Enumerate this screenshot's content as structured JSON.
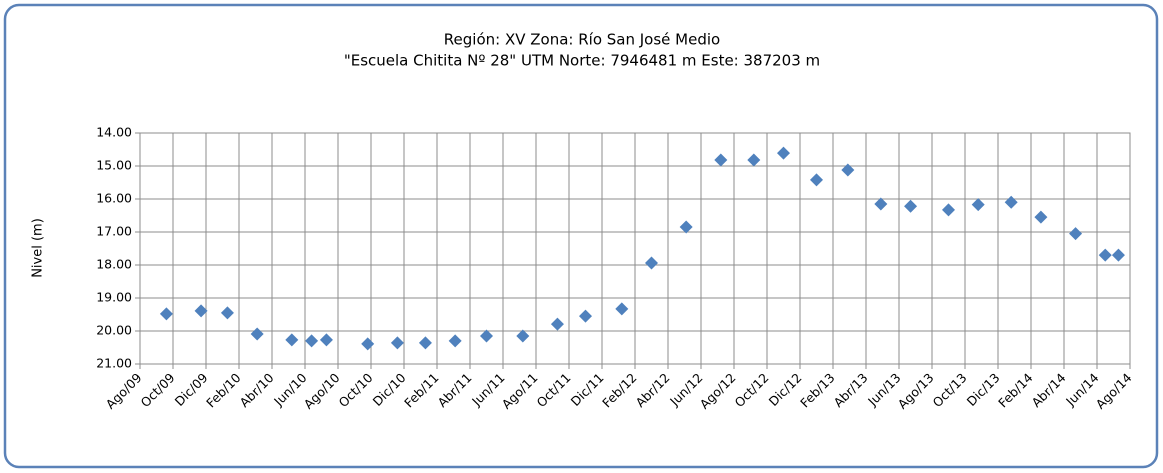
{
  "chart_data": {
    "type": "scatter",
    "title": "Región: XV Zona: Río San José Medio",
    "subtitle": "\"Escuela Chitita Nº 28\" UTM Norte: 7946481 m Este: 387203 m",
    "y_label": "Nivel (m)",
    "color": "#4f81bd",
    "grid": true,
    "y_reversed": true,
    "xlim": [
      0,
      60
    ],
    "xticks": [
      {
        "value": 0,
        "label": "Ago/09"
      },
      {
        "value": 2,
        "label": "Oct/09"
      },
      {
        "value": 4,
        "label": "Dic/09"
      },
      {
        "value": 6,
        "label": "Feb/10"
      },
      {
        "value": 8,
        "label": "Abr/10"
      },
      {
        "value": 10,
        "label": "Jun/10"
      },
      {
        "value": 12,
        "label": "Ago/10"
      },
      {
        "value": 14,
        "label": "Oct/10"
      },
      {
        "value": 16,
        "label": "Dic/10"
      },
      {
        "value": 18,
        "label": "Feb/11"
      },
      {
        "value": 20,
        "label": "Abr/11"
      },
      {
        "value": 22,
        "label": "Jun/11"
      },
      {
        "value": 24,
        "label": "Ago/11"
      },
      {
        "value": 26,
        "label": "Oct/11"
      },
      {
        "value": 28,
        "label": "Dic/11"
      },
      {
        "value": 30,
        "label": "Feb/12"
      },
      {
        "value": 32,
        "label": "Abr/12"
      },
      {
        "value": 34,
        "label": "Jun/12"
      },
      {
        "value": 36,
        "label": "Ago/12"
      },
      {
        "value": 38,
        "label": "Oct/12"
      },
      {
        "value": 40,
        "label": "Dic/12"
      },
      {
        "value": 42,
        "label": "Feb/13"
      },
      {
        "value": 44,
        "label": "Abr/13"
      },
      {
        "value": 46,
        "label": "Jun/13"
      },
      {
        "value": 48,
        "label": "Ago/13"
      },
      {
        "value": 50,
        "label": "Oct/13"
      },
      {
        "value": 52,
        "label": "Dic/13"
      },
      {
        "value": 54,
        "label": "Feb/14"
      },
      {
        "value": 56,
        "label": "Abr/14"
      },
      {
        "value": 58,
        "label": "Jun/14"
      },
      {
        "value": 60,
        "label": "Ago/14"
      }
    ],
    "ylim": [
      14,
      21
    ],
    "yticks": [
      {
        "value": 14,
        "label": "14.00"
      },
      {
        "value": 15,
        "label": "15.00"
      },
      {
        "value": 16,
        "label": "16.00"
      },
      {
        "value": 17,
        "label": "17.00"
      },
      {
        "value": 18,
        "label": "18.00"
      },
      {
        "value": 19,
        "label": "19.00"
      },
      {
        "value": 20,
        "label": "20.00"
      },
      {
        "value": 21,
        "label": "21.00"
      }
    ],
    "x": [
      1.6,
      3.7,
      5.3,
      7.1,
      9.2,
      10.4,
      11.3,
      13.8,
      15.6,
      17.3,
      19.1,
      21.0,
      23.2,
      25.3,
      27.0,
      29.2,
      31.0,
      33.1,
      35.2,
      37.2,
      39.0,
      41.0,
      42.9,
      44.9,
      46.7,
      49.0,
      50.8,
      52.8,
      54.6,
      56.7,
      58.5,
      59.3
    ],
    "values": [
      19.48,
      19.39,
      19.45,
      20.09,
      20.27,
      20.3,
      20.27,
      20.39,
      20.36,
      20.36,
      20.3,
      20.15,
      20.15,
      19.79,
      19.55,
      19.33,
      17.94,
      16.85,
      14.82,
      14.82,
      14.61,
      15.42,
      15.12,
      16.15,
      16.22,
      16.33,
      16.17,
      16.1,
      16.55,
      17.05,
      17.7,
      17.7
    ]
  }
}
